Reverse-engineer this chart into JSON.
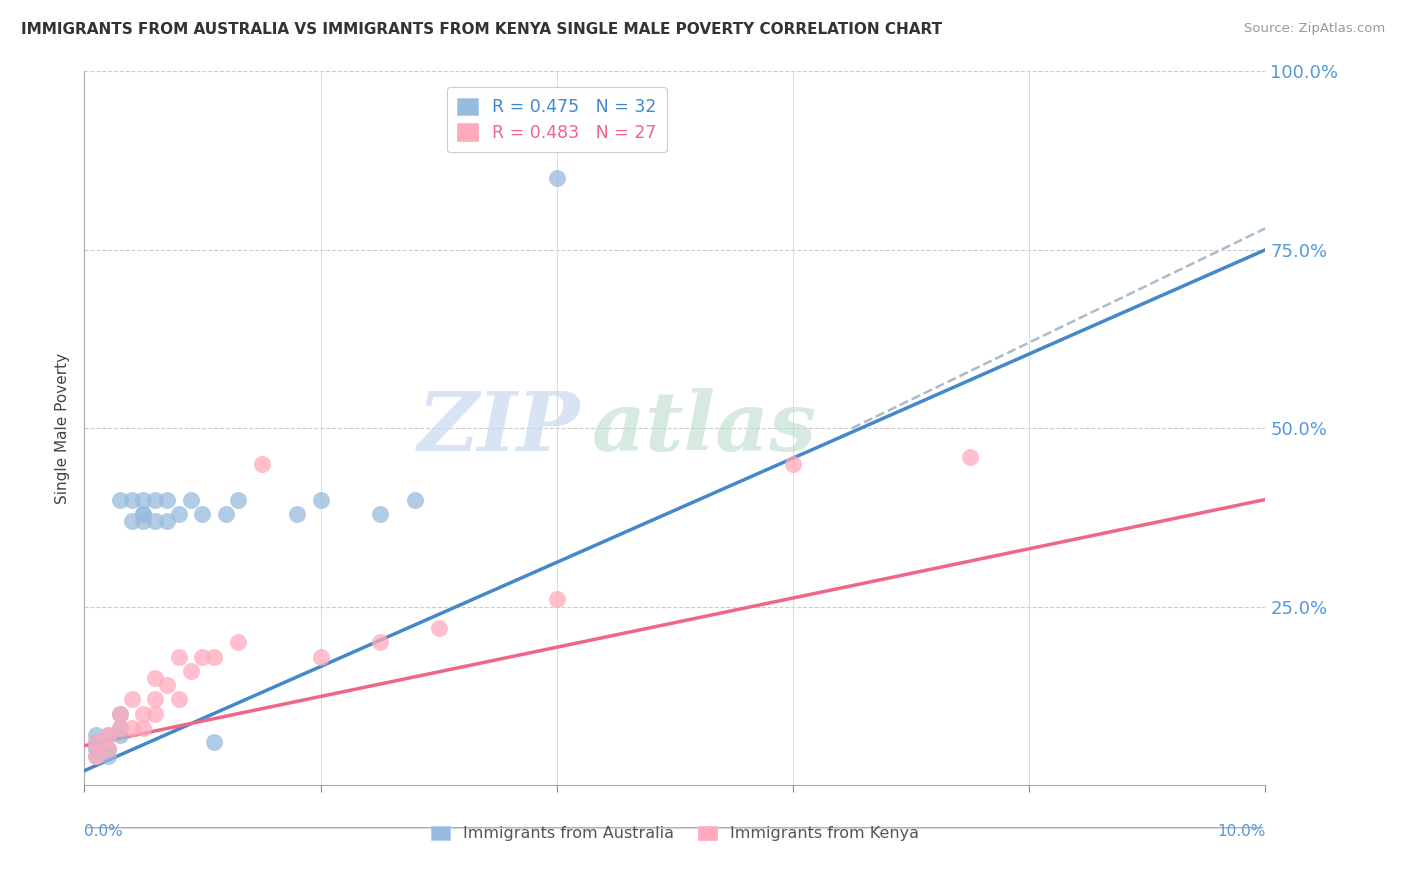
{
  "title": "IMMIGRANTS FROM AUSTRALIA VS IMMIGRANTS FROM KENYA SINGLE MALE POVERTY CORRELATION CHART",
  "source": "Source: ZipAtlas.com",
  "ylabel": "Single Male Poverty",
  "legend_australia": "R = 0.475   N = 32",
  "legend_kenya": "R = 0.483   N = 27",
  "xlim": [
    0.0,
    0.1
  ],
  "ylim": [
    0.0,
    1.0
  ],
  "yticks": [
    0.0,
    0.25,
    0.5,
    0.75,
    1.0
  ],
  "color_australia": "#99BBDD",
  "color_kenya": "#FFAABB",
  "color_australia_line": "#4488CC",
  "color_kenya_line": "#EE6688",
  "color_dashed": "#AABBCC",
  "watermark_zip": "ZIP",
  "watermark_atlas": "atlas",
  "aus_line_x0": 0.0,
  "aus_line_y0": 0.02,
  "aus_line_x1": 0.1,
  "aus_line_y1": 0.75,
  "ken_line_x0": 0.0,
  "ken_line_y0": 0.055,
  "ken_line_x1": 0.1,
  "ken_line_y1": 0.4,
  "dash_line_x0": 0.065,
  "dash_line_y0": 0.5,
  "dash_line_x1": 0.1,
  "dash_line_y1": 0.78,
  "australia_x": [
    0.001,
    0.001,
    0.001,
    0.001,
    0.002,
    0.002,
    0.002,
    0.003,
    0.003,
    0.003,
    0.003,
    0.004,
    0.004,
    0.005,
    0.005,
    0.005,
    0.005,
    0.006,
    0.006,
    0.007,
    0.007,
    0.008,
    0.009,
    0.01,
    0.011,
    0.012,
    0.013,
    0.018,
    0.02,
    0.025,
    0.028,
    0.04
  ],
  "australia_y": [
    0.04,
    0.05,
    0.06,
    0.07,
    0.04,
    0.05,
    0.07,
    0.07,
    0.08,
    0.1,
    0.4,
    0.37,
    0.4,
    0.37,
    0.38,
    0.4,
    0.38,
    0.37,
    0.4,
    0.37,
    0.4,
    0.38,
    0.4,
    0.38,
    0.06,
    0.38,
    0.4,
    0.38,
    0.4,
    0.38,
    0.4,
    0.85
  ],
  "kenya_x": [
    0.001,
    0.001,
    0.002,
    0.002,
    0.003,
    0.003,
    0.004,
    0.004,
    0.005,
    0.005,
    0.006,
    0.006,
    0.006,
    0.007,
    0.008,
    0.008,
    0.009,
    0.01,
    0.011,
    0.013,
    0.015,
    0.02,
    0.025,
    0.03,
    0.04,
    0.06,
    0.075
  ],
  "kenya_y": [
    0.04,
    0.06,
    0.05,
    0.07,
    0.08,
    0.1,
    0.08,
    0.12,
    0.08,
    0.1,
    0.1,
    0.12,
    0.15,
    0.14,
    0.12,
    0.18,
    0.16,
    0.18,
    0.18,
    0.2,
    0.45,
    0.18,
    0.2,
    0.22,
    0.26,
    0.45,
    0.46
  ]
}
